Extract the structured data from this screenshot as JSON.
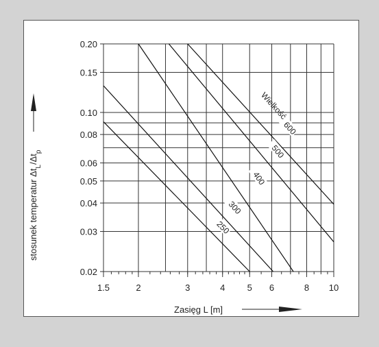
{
  "chart_data": {
    "type": "line",
    "x_scale": "log",
    "y_scale": "log",
    "xlim": [
      1.5,
      10
    ],
    "ylim": [
      0.02,
      0.2
    ],
    "grid": true,
    "xlabel": "Zasięg  L [m]",
    "ylabel": "stosunek temperatur  Δt",
    "ylabel_sub1": "L",
    "ylabel_mid": "/Δt",
    "ylabel_sub2": "p",
    "size_label": "Wielkość",
    "x_tick_labels": [
      "1.5",
      "2",
      "3",
      "4",
      "5",
      "6",
      "8",
      "10"
    ],
    "x_tick_values": [
      1.5,
      2,
      3,
      4,
      5,
      6,
      8,
      10
    ],
    "y_tick_labels": [
      "0.20",
      "0.15",
      "0.10",
      "0.08",
      "0.06",
      "0.05",
      "0.04",
      "0.03",
      "0.02"
    ],
    "y_tick_values": [
      0.2,
      0.15,
      0.1,
      0.08,
      0.06,
      0.05,
      0.04,
      0.03,
      0.02
    ],
    "grid_x": [
      1.5,
      2,
      2.5,
      3,
      3.5,
      4,
      5,
      6,
      7,
      8,
      9,
      10
    ],
    "grid_y": [
      0.02,
      0.03,
      0.04,
      0.05,
      0.06,
      0.07,
      0.08,
      0.09,
      0.1,
      0.15,
      0.2
    ],
    "series": [
      {
        "name": "250",
        "points": [
          [
            1.5,
            0.091
          ],
          [
            5.0,
            0.02
          ]
        ],
        "label_at": [
          3.95,
          0.0315
        ]
      },
      {
        "name": "300",
        "points": [
          [
            1.5,
            0.131
          ],
          [
            6.07,
            0.02
          ]
        ],
        "label_at": [
          4.35,
          0.0385
        ]
      },
      {
        "name": "400",
        "points": [
          [
            2.0,
            0.2
          ],
          [
            7.17,
            0.02
          ]
        ],
        "label_at": [
          5.3,
          0.052
        ]
      },
      {
        "name": "500",
        "points": [
          [
            2.57,
            0.2
          ],
          [
            10.0,
            0.027
          ]
        ],
        "label_at": [
          6.2,
          0.068
        ]
      },
      {
        "name": "600",
        "points": [
          [
            3.0,
            0.2
          ],
          [
            10.0,
            0.0395
          ]
        ],
        "label_at": [
          6.85,
          0.086
        ]
      }
    ]
  }
}
